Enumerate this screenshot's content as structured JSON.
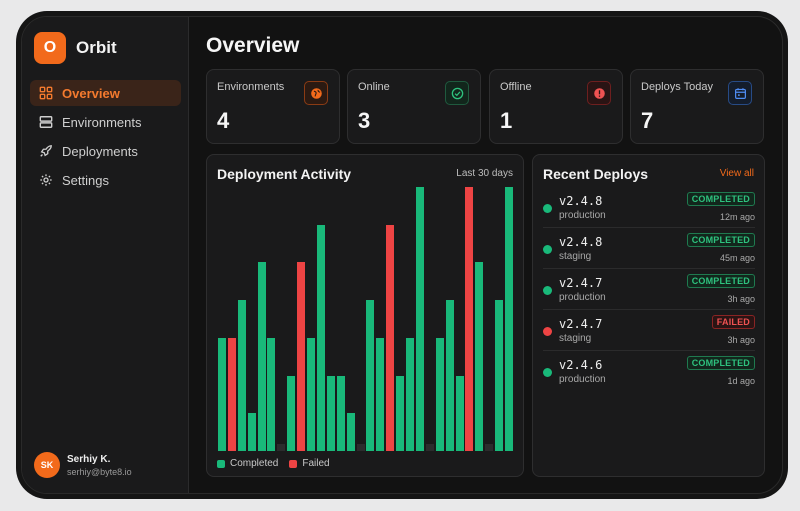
{
  "app": {
    "logo_letter": "O",
    "name": "Orbit"
  },
  "sidebar": {
    "items": [
      {
        "label": "Overview",
        "icon": "grid-icon",
        "active": true
      },
      {
        "label": "Environments",
        "icon": "server-icon",
        "active": false
      },
      {
        "label": "Deployments",
        "icon": "rocket-icon",
        "active": false
      },
      {
        "label": "Settings",
        "icon": "gear-icon",
        "active": false
      }
    ]
  },
  "user": {
    "initials": "SK",
    "name": "Serhiy K.",
    "email": "serhiy@byte8.io"
  },
  "page": {
    "title": "Overview"
  },
  "stats": [
    {
      "label": "Environments",
      "value": "4",
      "icon": "globe-icon",
      "color": "#f26a1b"
    },
    {
      "label": "Online",
      "value": "3",
      "icon": "check-circle-icon",
      "color": "#2ec27e"
    },
    {
      "label": "Offline",
      "value": "1",
      "icon": "alert-circle-icon",
      "color": "#f05252"
    },
    {
      "label": "Deploys Today",
      "value": "7",
      "icon": "calendar-icon",
      "color": "#4f8df5"
    }
  ],
  "activity": {
    "title": "Deployment Activity",
    "range": "Last 30 days",
    "legend": {
      "completed": "Completed",
      "failed": "Failed"
    },
    "colors": {
      "completed": "#19b97a",
      "failed": "#ee4444",
      "empty": "#2c2c2d"
    }
  },
  "chart_data": {
    "type": "bar",
    "x": [
      1,
      2,
      3,
      4,
      5,
      6,
      7,
      8,
      9,
      10,
      11,
      12,
      13,
      14,
      15,
      16,
      17,
      18,
      19,
      20,
      21,
      22,
      23,
      24,
      25,
      26,
      27,
      28,
      29,
      30
    ],
    "series": [
      {
        "name": "Completed",
        "values": [
          3,
          0,
          4,
          1,
          5,
          3,
          0,
          2,
          0,
          3,
          6,
          2,
          2,
          1,
          0,
          4,
          3,
          0,
          2,
          3,
          7,
          0,
          3,
          4,
          2,
          0,
          5,
          0,
          4,
          7
        ]
      },
      {
        "name": "Failed",
        "values": [
          0,
          3,
          0,
          0,
          0,
          0,
          0,
          0,
          5,
          0,
          0,
          0,
          0,
          0,
          0,
          0,
          0,
          6,
          0,
          0,
          0,
          0,
          0,
          0,
          0,
          7,
          0,
          0,
          0,
          0
        ]
      }
    ],
    "ylim": [
      0,
      7
    ]
  },
  "recent": {
    "title": "Recent Deploys",
    "view_all": "View all",
    "items": [
      {
        "version": "v2.4.8",
        "env": "production",
        "status": "COMPLETED",
        "time": "12m ago",
        "ok": true
      },
      {
        "version": "v2.4.8",
        "env": "staging",
        "status": "COMPLETED",
        "time": "45m ago",
        "ok": true
      },
      {
        "version": "v2.4.7",
        "env": "production",
        "status": "COMPLETED",
        "time": "3h ago",
        "ok": true
      },
      {
        "version": "v2.4.7",
        "env": "staging",
        "status": "FAILED",
        "time": "3h ago",
        "ok": false
      },
      {
        "version": "v2.4.6",
        "env": "production",
        "status": "COMPLETED",
        "time": "1d ago",
        "ok": true
      }
    ]
  }
}
